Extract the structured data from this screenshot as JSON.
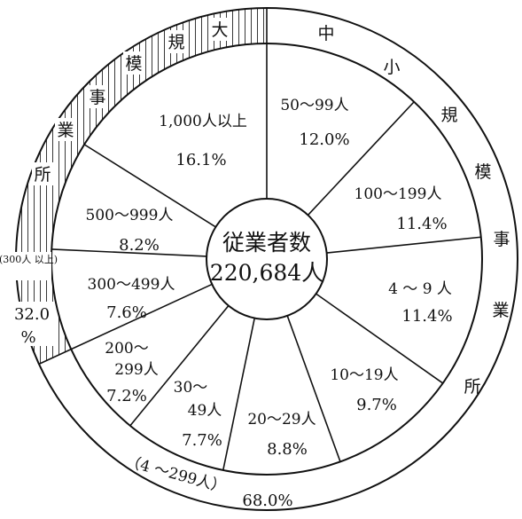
{
  "chart_data": {
    "type": "pie",
    "center_title": "従業者数",
    "center_total": "220,684人",
    "unit": "%",
    "slices": [
      {
        "label": "50〜99人",
        "value": 12.0,
        "value_text": "12.0%",
        "group": "small_medium"
      },
      {
        "label": "100〜199人",
        "value": 11.4,
        "value_text": "11.4%",
        "group": "small_medium"
      },
      {
        "label": "4 〜 9 人",
        "value": 11.4,
        "value_text": "11.4%",
        "group": "small_medium"
      },
      {
        "label": "10〜19人",
        "value": 9.7,
        "value_text": "9.7%",
        "group": "small_medium"
      },
      {
        "label": "20〜29人",
        "value": 8.8,
        "value_text": "8.8%",
        "group": "small_medium"
      },
      {
        "label": "30〜49人",
        "value": 7.7,
        "value_text": "7.7%",
        "group": "small_medium"
      },
      {
        "label": "200〜299人",
        "value": 7.2,
        "value_text": "7.2%",
        "group": "small_medium"
      },
      {
        "label": "300〜499人",
        "value": 7.6,
        "value_text": "7.6%",
        "group": "large"
      },
      {
        "label": "500〜999人",
        "value": 8.2,
        "value_text": "8.2%",
        "group": "large"
      },
      {
        "label": "1,000人以上",
        "value": 16.1,
        "value_text": "16.1%",
        "group": "large"
      }
    ],
    "groups": {
      "small_medium": {
        "label_chars": [
          "中",
          "小",
          "規",
          "模",
          "事",
          "業",
          "所"
        ],
        "range_text": "（4 〜299人）",
        "share_text": "68.0%",
        "value": 68.0
      },
      "large": {
        "label_chars": [
          "大",
          "規",
          "模",
          "事",
          "業",
          "所"
        ],
        "range_note": "(300人 以上)",
        "share_value": "32.0",
        "share_unit": "%",
        "value": 32.0,
        "hatched": true
      }
    }
  }
}
